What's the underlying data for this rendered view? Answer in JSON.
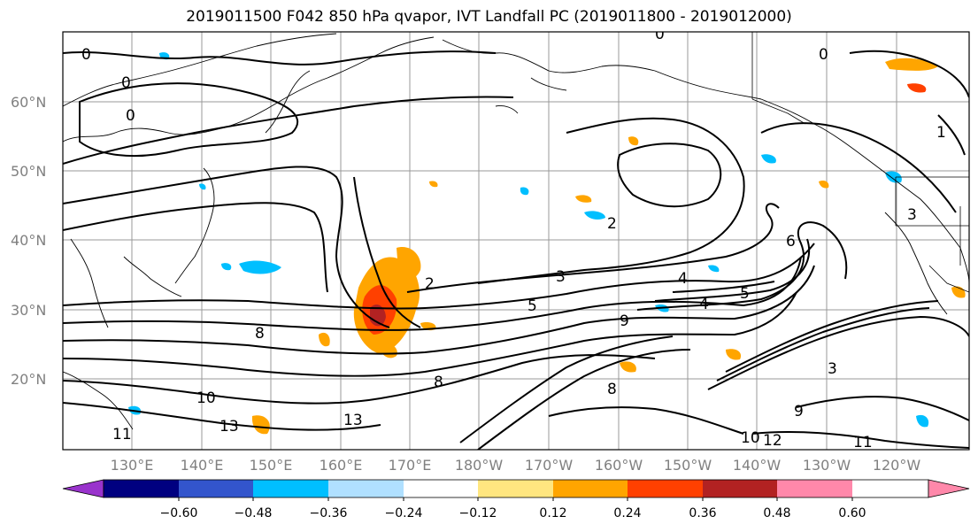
{
  "title": "2019011500 F042 850 hPa qvapor, IVT Landfall PC (2019011800 - 2019012000)",
  "map": {
    "lat_labels": [
      "60°N",
      "50°N",
      "40°N",
      "30°N",
      "20°N"
    ],
    "lon_labels": [
      "130°E",
      "140°E",
      "150°E",
      "160°E",
      "170°E",
      "180°W",
      "170°W",
      "160°W",
      "150°W",
      "140°W",
      "130°W",
      "120°W"
    ],
    "contour_labels": [
      "0",
      "0",
      "0",
      "0",
      "0",
      "1",
      "2",
      "2",
      "3",
      "3",
      "3",
      "4",
      "4",
      "5",
      "5",
      "6",
      "8",
      "8",
      "8",
      "9",
      "9",
      "10",
      "10",
      "11",
      "11",
      "12",
      "13",
      "13"
    ]
  },
  "colorbar": {
    "colors": [
      "#9933cc",
      "#000080",
      "#3355cc",
      "#00bfff",
      "#b0e0ff",
      "#ffffff",
      "#ffe680",
      "#ffa500",
      "#ff4000",
      "#b22222",
      "#ff88aa"
    ],
    "ticks": [
      "−0.60",
      "−0.48",
      "−0.36",
      "−0.24",
      "−0.12",
      "0.12",
      "0.24",
      "0.36",
      "0.48",
      "0.60"
    ]
  }
}
